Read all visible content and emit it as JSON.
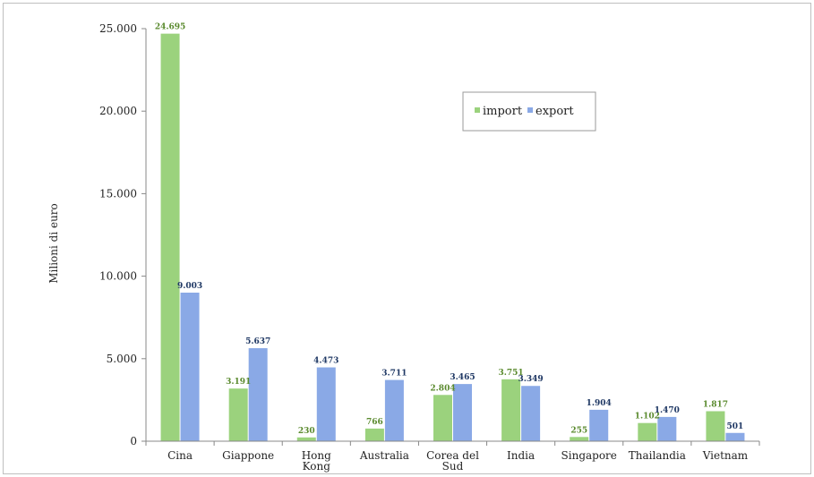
{
  "chart_data": {
    "type": "bar",
    "title": "",
    "xlabel": "",
    "ylabel": "Milioni di euro",
    "ylim": [
      0,
      25000
    ],
    "yticks": [
      0,
      5000,
      10000,
      15000,
      20000,
      25000
    ],
    "ytick_labels": [
      "0",
      "5.000",
      "10.000",
      "15.000",
      "20.000",
      "25.000"
    ],
    "grid": false,
    "legend_position": "top-right",
    "categories": [
      [
        "Cina"
      ],
      [
        "Giappone"
      ],
      [
        "Hong",
        "Kong"
      ],
      [
        "Australia"
      ],
      [
        "Corea del",
        "Sud"
      ],
      [
        "India"
      ],
      [
        "Singapore"
      ],
      [
        "Thailandia"
      ],
      [
        "Vietnam"
      ]
    ],
    "series": [
      {
        "name": "import",
        "color": "#9bd27d",
        "label_color": "#5a8a2e",
        "values": [
          24695,
          3191,
          230,
          766,
          2804,
          3751,
          255,
          1102,
          1817
        ],
        "labels": [
          "24.695",
          "3.191",
          "230",
          "766",
          "2.804",
          "3.751",
          "255",
          "1.102",
          "1.817"
        ]
      },
      {
        "name": "export",
        "color": "#8aa9e6",
        "label_color": "#1f3864",
        "values": [
          9003,
          5637,
          4473,
          3711,
          3465,
          3349,
          1904,
          1470,
          501
        ],
        "labels": [
          "9.003",
          "5.637",
          "4.473",
          "3.711",
          "3.465",
          "3.349",
          "1.904",
          "1.470",
          "501"
        ]
      }
    ]
  }
}
